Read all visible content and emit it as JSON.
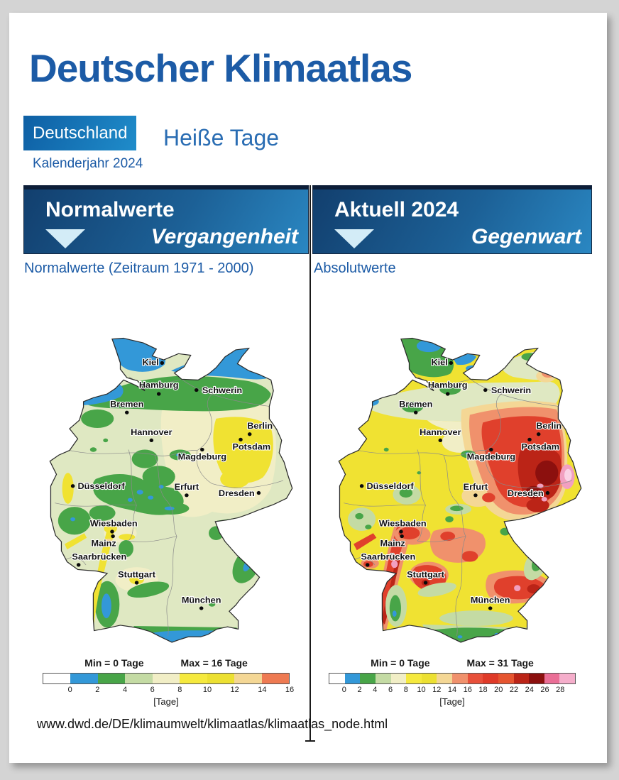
{
  "page": {
    "title": "Deutscher Klimaatlas",
    "region_button_label": "Deutschland",
    "topic_title": "Heiße Tage",
    "period_label": "Kalenderjahr 2024",
    "source_url": "www.dwd.de/DE/klimaumwelt/klimaatlas/klimaatlas_node.html"
  },
  "colors": {
    "brand_blue": "#1c5ba6",
    "bar_gradient_dark": "#123f6e",
    "bar_gradient_light": "#2a87c2",
    "bar_top_edge": "#0d1e38",
    "dropdown_triangle": "#d3ecf7",
    "background_gray": "#d4d4d4"
  },
  "panels": {
    "past": {
      "header_label": "Normalwerte",
      "tagline": "Vergangenheit",
      "dropdown_icon": "triangle-down",
      "caption": "Normalwerte (Zeitraum 1971 - 2000)",
      "legend": {
        "min_label": "Min = 0 Tage",
        "max_label": "Max = 16 Tage",
        "unit_label": "[Tage]",
        "ticks": [
          "0",
          "2",
          "4",
          "6",
          "8",
          "10",
          "12",
          "14",
          "16"
        ],
        "segment_colors": [
          "#ffffff",
          "#3398d8",
          "#48a548",
          "#c4dba4",
          "#f1eec6",
          "#f5e93e",
          "#ece032",
          "#f4d795",
          "#ee7a52"
        ]
      }
    },
    "present": {
      "header_label": "Aktuell 2024",
      "tagline": "Gegenwart",
      "dropdown_icon": "triangle-down",
      "caption": "Absolutwerte",
      "legend": {
        "min_label": "Min = 0 Tage",
        "max_label": "Max = 31 Tage",
        "unit_label": "[Tage]",
        "ticks": [
          "0",
          "2",
          "4",
          "6",
          "8",
          "10",
          "12",
          "14",
          "16",
          "18",
          "20",
          "22",
          "24",
          "26",
          "28"
        ],
        "segment_colors": [
          "#ffffff",
          "#3398d8",
          "#48a548",
          "#c4dba4",
          "#f1eec6",
          "#f5e93e",
          "#ece032",
          "#f4d795",
          "#f0916c",
          "#e8503a",
          "#df3a28",
          "#e65530",
          "#bb2417",
          "#8c100e",
          "#ea6e96",
          "#f5aecb"
        ]
      }
    }
  },
  "cities": [
    {
      "name": "Kiel"
    },
    {
      "name": "Hamburg"
    },
    {
      "name": "Schwerin"
    },
    {
      "name": "Bremen"
    },
    {
      "name": "Hannover"
    },
    {
      "name": "Berlin"
    },
    {
      "name": "Potsdam"
    },
    {
      "name": "Magdeburg"
    },
    {
      "name": "Düsseldorf"
    },
    {
      "name": "Erfurt"
    },
    {
      "name": "Dresden"
    },
    {
      "name": "Wiesbaden"
    },
    {
      "name": "Mainz"
    },
    {
      "name": "Saarbrücken"
    },
    {
      "name": "Stuttgart"
    },
    {
      "name": "München"
    }
  ]
}
